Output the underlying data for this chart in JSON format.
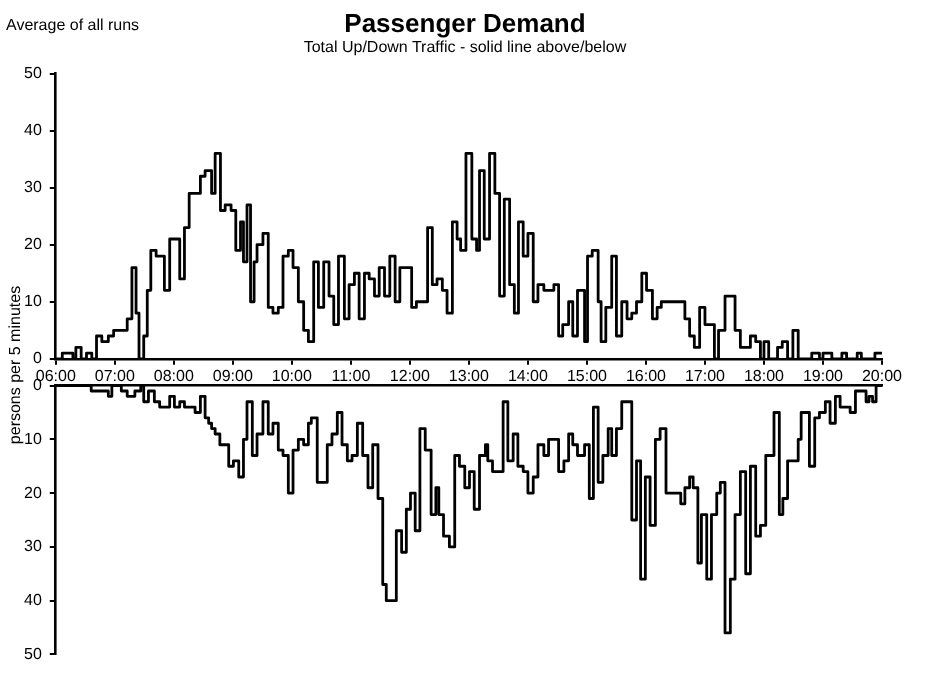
{
  "chart_data": [
    {
      "type": "step",
      "title": "Passenger Demand",
      "subtitle": "Total Up/Down Traffic - solid line above/below",
      "annotations": [
        "Average of all runs"
      ],
      "xlim": [
        6,
        20
      ],
      "xticks": [
        {
          "value": 6,
          "label": "06:00"
        },
        {
          "value": 7,
          "label": "07:00"
        },
        {
          "value": 8,
          "label": "08:00"
        },
        {
          "value": 9,
          "label": "09:00"
        },
        {
          "value": 10,
          "label": "10:00"
        },
        {
          "value": 11,
          "label": "11:00"
        },
        {
          "value": 12,
          "label": "12:00"
        },
        {
          "value": 13,
          "label": "13:00"
        },
        {
          "value": 14,
          "label": "14:00"
        },
        {
          "value": 15,
          "label": "15:00"
        },
        {
          "value": 16,
          "label": "16:00"
        },
        {
          "value": 17,
          "label": "17:00"
        },
        {
          "value": 18,
          "label": "18:00"
        },
        {
          "value": 19,
          "label": "19:00"
        },
        {
          "value": 20,
          "label": "20:00"
        }
      ],
      "ylim": [
        0,
        50
      ],
      "yticks": [
        0,
        10,
        20,
        30,
        40,
        50
      ],
      "grid": false,
      "legend": false,
      "marker": "none",
      "line_style": "solid",
      "series": [
        {
          "color": "#000000",
          "x": [
            6,
            6.11,
            6.29,
            6.34,
            6.43,
            6.52,
            6.61,
            6.69,
            6.78,
            6.89,
            6.98,
            7.21,
            7.29,
            7.36,
            7.41,
            7.49,
            7.55,
            7.61,
            7.7,
            7.84,
            7.93,
            8.1,
            8.18,
            8.26,
            8.45,
            8.53,
            8.64,
            8.7,
            8.79,
            8.87,
            8.97,
            9.05,
            9.13,
            9.18,
            9.24,
            9.3,
            9.36,
            9.41,
            9.51,
            9.6,
            9.68,
            9.77,
            9.85,
            9.94,
            10.02,
            10.11,
            10.2,
            10.28,
            10.37,
            10.45,
            10.54,
            10.63,
            10.71,
            10.79,
            10.89,
            10.97,
            11.06,
            11.14,
            11.23,
            11.31,
            11.4,
            11.48,
            11.57,
            11.66,
            11.75,
            11.83,
            12.03,
            12.11,
            12.3,
            12.38,
            12.46,
            12.55,
            12.63,
            12.72,
            12.8,
            12.86,
            12.95,
            13.05,
            13.13,
            13.18,
            13.26,
            13.35,
            13.44,
            13.52,
            13.6,
            13.69,
            13.77,
            13.84,
            13.92,
            14,
            14.09,
            14.17,
            14.27,
            14.44,
            14.52,
            14.59,
            14.69,
            14.76,
            14.84,
            14.96,
            15.01,
            15.09,
            15.19,
            15.24,
            15.32,
            15.42,
            15.5,
            15.59,
            15.68,
            15.76,
            15.84,
            15.93,
            16.01,
            16.11,
            16.19,
            16.26,
            16.66,
            16.74,
            16.82,
            16.91,
            17,
            17.16,
            17.23,
            17.34,
            17.51,
            17.6,
            17.77,
            17.86,
            17.94,
            18,
            18.08,
            18.23,
            18.31,
            18.4,
            18.49,
            18.58,
            18.81,
            18.94,
            19,
            19.15,
            19.32,
            19.4,
            19.58,
            19.65,
            19.88,
            20
          ],
          "values": [
            0,
            1,
            0,
            2,
            0,
            1,
            0,
            4,
            3,
            4,
            5,
            7,
            16,
            8,
            0,
            4,
            12,
            19,
            18,
            12,
            21,
            14,
            23,
            29,
            32,
            33,
            29,
            36,
            26,
            27,
            26,
            19,
            24,
            17,
            27,
            10,
            17,
            20,
            22,
            9,
            8,
            9,
            18,
            19,
            16,
            10,
            5,
            3,
            17,
            9,
            17,
            11,
            6,
            18,
            7,
            13,
            15,
            7,
            15,
            14,
            11,
            16,
            11,
            18,
            10,
            16,
            9,
            10,
            23,
            13,
            14,
            12,
            8,
            24,
            21,
            19,
            36,
            21,
            19,
            33,
            21,
            36,
            29,
            11,
            28,
            13,
            8,
            24,
            18,
            22,
            10,
            13,
            12,
            13,
            4,
            6,
            10,
            4,
            12,
            3,
            18,
            19,
            10,
            3,
            9,
            18,
            4,
            10,
            7,
            8,
            10,
            15,
            12,
            7,
            9,
            10,
            7,
            4,
            2,
            9,
            6,
            0,
            5,
            11,
            5,
            2,
            4,
            3,
            0,
            3,
            0,
            2,
            3,
            0,
            5,
            0,
            1,
            0,
            1,
            0,
            1,
            0,
            1,
            0,
            1,
            1
          ]
        }
      ]
    },
    {
      "type": "step",
      "ylabel": "persons per 5 minutes",
      "xlim": [
        6,
        20
      ],
      "ylim": [
        50,
        0
      ],
      "yticks": [
        0,
        10,
        20,
        30,
        40,
        50
      ],
      "tick_labels": "y",
      "grid": false,
      "legend": false,
      "marker": "none",
      "line_style": "solid",
      "series": [
        {
          "color": "#000000",
          "x": [
            6,
            6.6,
            6.89,
            6.95,
            7.11,
            7.21,
            7.34,
            7.44,
            7.49,
            7.57,
            7.67,
            7.76,
            7.93,
            8.01,
            8.1,
            8.18,
            8.36,
            8.45,
            8.53,
            8.59,
            8.64,
            8.7,
            8.78,
            8.93,
            9.01,
            9.1,
            9.18,
            9.24,
            9.33,
            9.41,
            9.51,
            9.6,
            9.68,
            9.77,
            9.85,
            9.94,
            10.02,
            10.11,
            10.2,
            10.28,
            10.33,
            10.43,
            10.6,
            10.68,
            10.77,
            10.85,
            10.94,
            11.02,
            11.11,
            11.2,
            11.29,
            11.37,
            11.46,
            11.54,
            11.6,
            11.77,
            11.86,
            11.94,
            12.01,
            12.09,
            12.17,
            12.26,
            12.36,
            12.44,
            12.49,
            12.57,
            12.67,
            12.76,
            12.84,
            12.93,
            13.01,
            13.09,
            13.18,
            13.28,
            13.32,
            13.4,
            13.58,
            13.66,
            13.75,
            13.83,
            13.92,
            14,
            14.09,
            14.17,
            14.27,
            14.35,
            14.52,
            14.61,
            14.69,
            14.76,
            14.84,
            14.96,
            15.04,
            15.11,
            15.19,
            15.27,
            15.36,
            15.42,
            15.5,
            15.59,
            15.76,
            15.84,
            15.91,
            15.99,
            16.07,
            16.16,
            16.24,
            16.34,
            16.59,
            16.66,
            16.74,
            16.8,
            16.88,
            16.94,
            17.03,
            17.11,
            17.2,
            17.26,
            17.34,
            17.43,
            17.51,
            17.6,
            17.69,
            17.77,
            17.86,
            17.94,
            18.03,
            18.17,
            18.26,
            18.32,
            18.4,
            18.58,
            18.63,
            18.77,
            18.86,
            18.94,
            19.04,
            19.12,
            19.21,
            19.29,
            19.46,
            19.55,
            19.73,
            19.78,
            19.84,
            19.9,
            20
          ],
          "values": [
            0,
            1,
            2,
            0,
            1,
            2,
            1,
            0,
            3,
            1,
            3,
            4,
            2,
            4,
            3,
            4,
            5,
            2,
            6,
            7,
            8,
            9,
            11,
            15,
            14,
            17,
            10,
            3,
            13,
            9,
            3,
            9,
            7,
            12,
            13,
            20,
            12,
            10,
            11,
            7,
            6,
            18,
            11,
            9,
            5,
            11,
            14,
            13,
            7,
            13,
            19,
            11,
            21,
            37,
            40,
            27,
            31,
            23,
            20,
            27,
            8,
            12,
            24,
            19,
            24,
            28,
            30,
            13,
            15,
            19,
            16,
            23,
            13,
            11,
            14,
            16,
            3,
            14,
            9,
            15,
            16,
            20,
            17,
            11,
            13,
            10,
            16,
            14,
            9,
            11,
            13,
            11,
            21,
            4,
            18,
            13,
            8,
            13,
            8,
            3,
            25,
            14,
            36,
            17,
            26,
            10,
            8,
            20,
            22,
            19,
            17,
            19,
            33,
            24,
            36,
            24,
            20,
            18,
            46,
            36,
            24,
            16,
            35,
            15,
            28,
            26,
            13,
            5,
            24,
            21,
            14,
            10,
            5,
            15,
            6,
            5,
            3,
            7,
            2,
            4,
            5,
            1,
            3,
            2,
            3,
            0,
            0
          ]
        }
      ]
    }
  ]
}
